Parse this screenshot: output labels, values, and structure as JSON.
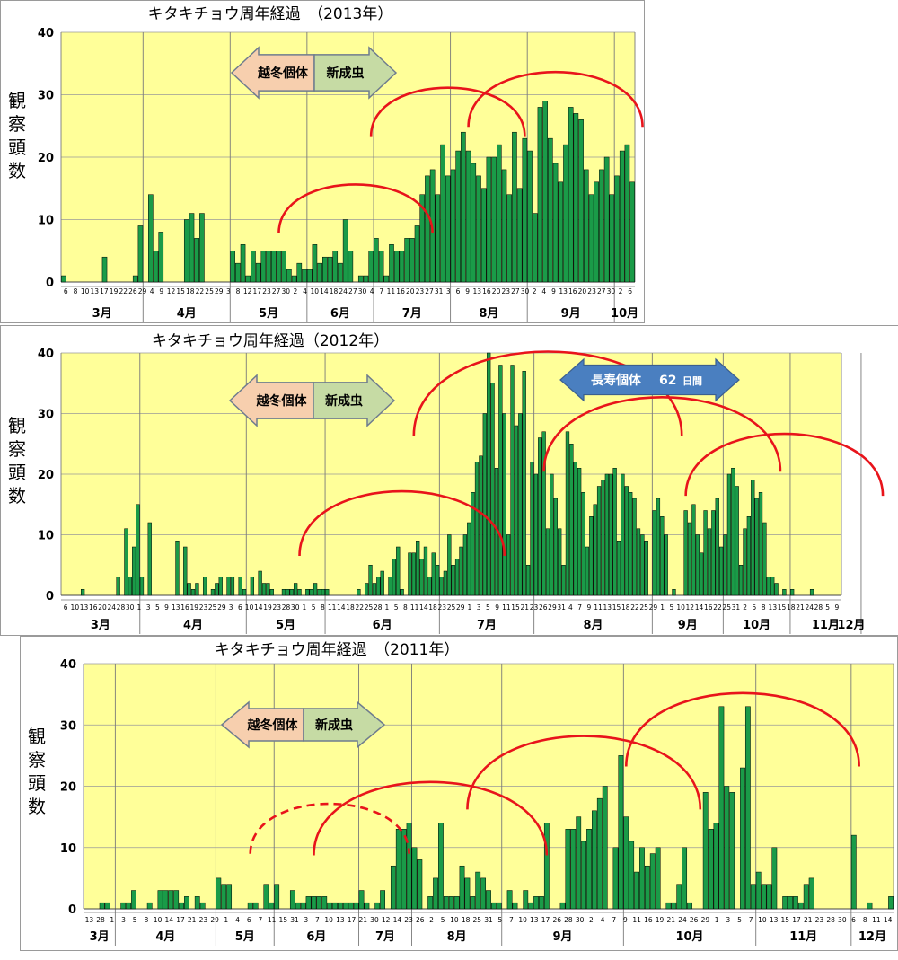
{
  "chart_data": [
    {
      "type": "bar",
      "title": "キタキチョウ周年経過　（2013年）",
      "ylabel": "観察頭数",
      "ylim": [
        0,
        40
      ],
      "yticks": [
        0,
        10,
        20,
        30,
        40
      ],
      "grid": "vertical month lines",
      "colors": {
        "plot_bg": "#ffff99",
        "bar": "#1a9b48",
        "bar_edge": "#000000",
        "arc": "#e8141b"
      },
      "x_tick_labels": [
        "6",
        "8",
        "10",
        "13",
        "17",
        "19",
        "22",
        "26",
        "29",
        "4",
        "9",
        "12",
        "15",
        "18",
        "22",
        "25",
        "29",
        "3",
        "8",
        "12",
        "17",
        "23",
        "27",
        "30",
        "2",
        "4",
        "10",
        "14",
        "18",
        "24",
        "27",
        "30",
        "4",
        "7",
        "11",
        "16",
        "20",
        "23",
        "27",
        "31",
        "3",
        "6",
        "9",
        "13",
        "16",
        "20",
        "23",
        "27",
        "30",
        "2",
        "4",
        "9",
        "13",
        "16",
        "20",
        "23",
        "27",
        "30",
        "2",
        "6"
      ],
      "values": [
        1,
        0,
        0,
        0,
        0,
        0,
        0,
        0,
        4,
        0,
        0,
        0,
        0,
        0,
        1,
        9,
        0,
        14,
        5,
        8,
        0,
        0,
        0,
        0,
        10,
        11,
        7,
        11,
        0,
        0,
        0,
        0,
        0,
        5,
        3,
        6,
        1,
        5,
        3,
        5,
        5,
        5,
        5,
        5,
        2,
        1,
        3,
        2,
        2,
        6,
        3,
        4,
        4,
        5,
        3,
        10,
        5,
        0,
        1,
        1,
        5,
        7,
        5,
        1,
        6,
        5,
        5,
        7,
        7,
        9,
        14,
        17,
        18,
        14,
        22,
        17,
        18,
        21,
        24,
        21,
        19,
        17,
        15,
        20,
        20,
        22,
        18,
        14,
        24,
        15,
        23,
        21,
        11,
        28,
        29,
        23,
        19,
        16,
        22,
        28,
        27,
        26,
        18,
        14,
        16,
        18,
        20,
        14,
        17,
        21,
        22,
        16
      ],
      "months": [
        {
          "label": "3月",
          "start_bar": 0
        },
        {
          "label": "4月",
          "start_bar": 16
        },
        {
          "label": "5月",
          "start_bar": 33
        },
        {
          "label": "6月",
          "start_bar": 48
        },
        {
          "label": "7月",
          "start_bar": 61
        },
        {
          "label": "8月",
          "start_bar": 76
        },
        {
          "label": "9月",
          "start_bar": 91
        },
        {
          "label": "10月",
          "start_bar": 108
        }
      ],
      "annotations": {
        "arrow_left": "越冬個体",
        "arrow_right": "新成虫",
        "arcs": [
          {
            "center_bar": 57,
            "peak": 15.5,
            "half_width_bars": 15,
            "dashed": false
          },
          {
            "center_bar": 75,
            "peak": 31,
            "half_width_bars": 15,
            "dashed": false
          },
          {
            "center_bar": 96,
            "peak": 33.5,
            "half_width_bars": 17,
            "dashed": false
          }
        ]
      }
    },
    {
      "type": "bar",
      "title": "キタキチョウ周年経過（2012年）",
      "ylabel": "観察頭数",
      "ylim": [
        0,
        40
      ],
      "yticks": [
        0,
        10,
        20,
        30,
        40
      ],
      "grid": "vertical month lines",
      "colors": {
        "plot_bg": "#ffff99",
        "bar": "#1a9b48",
        "bar_edge": "#000000",
        "arc": "#e8141b",
        "long_arrow": "#4a7fc0"
      },
      "x_tick_labels": [
        "6",
        "10",
        "13",
        "16",
        "20",
        "24",
        "28",
        "30",
        "1",
        "3",
        "5",
        "9",
        "13",
        "16",
        "19",
        "23",
        "25",
        "29",
        "3",
        "6",
        "10",
        "14",
        "19",
        "23",
        "28",
        "30",
        "1",
        "5",
        "8",
        "11",
        "14",
        "18",
        "22",
        "25",
        "28",
        "1",
        "5",
        "8",
        "11",
        "14",
        "18",
        "23",
        "25",
        "29",
        "1",
        "3",
        "5",
        "9",
        "11",
        "15",
        "21",
        "23",
        "26",
        "29",
        "31",
        "4",
        "7",
        "9",
        "11",
        "13",
        "15",
        "18",
        "22",
        "25",
        "29",
        "1",
        "5",
        "10",
        "12",
        "14",
        "16",
        "22",
        "25",
        "31",
        "2",
        "5",
        "8",
        "13",
        "15",
        "18",
        "21",
        "24",
        "28",
        "5",
        "9"
      ],
      "values": [
        0,
        0,
        0,
        0,
        0,
        1,
        0,
        0,
        0,
        0,
        0,
        0,
        0,
        0,
        3,
        0,
        11,
        3,
        8,
        15,
        3,
        0,
        12,
        0,
        0,
        0,
        0,
        0,
        0,
        9,
        0,
        8,
        2,
        1,
        2,
        0,
        3,
        0,
        1,
        2,
        3,
        0,
        3,
        3,
        0,
        3,
        1,
        0,
        3,
        0,
        4,
        2,
        2,
        1,
        0,
        0,
        1,
        1,
        1,
        2,
        1,
        0,
        1,
        1,
        2,
        1,
        1,
        1,
        0,
        0,
        0,
        0,
        0,
        0,
        0,
        1,
        0,
        2,
        5,
        2,
        3,
        4,
        0,
        3,
        6,
        8,
        1,
        0,
        7,
        7,
        9,
        6,
        8,
        3,
        7,
        5,
        3,
        4,
        10,
        5,
        6,
        8,
        10,
        12,
        17,
        22,
        23,
        30,
        40,
        35,
        21,
        38,
        30,
        10,
        38,
        28,
        30,
        37,
        5,
        22,
        20,
        26,
        27,
        11,
        20,
        16,
        11,
        5,
        27,
        25,
        22,
        21,
        17,
        8,
        13,
        15,
        18,
        19,
        20,
        20,
        21,
        9,
        20,
        18,
        17,
        16,
        11,
        10,
        9,
        0,
        14,
        16,
        13,
        10,
        0,
        1,
        0,
        0,
        14,
        12,
        15,
        10,
        7,
        14,
        11,
        14,
        16,
        8,
        10,
        20,
        21,
        18,
        5,
        11,
        13,
        19,
        16,
        17,
        12,
        3,
        3,
        2,
        0,
        1,
        0,
        1,
        0,
        0,
        0,
        0,
        1,
        0,
        0,
        0,
        0,
        0,
        0,
        0
      ],
      "months": [
        {
          "label": "3月",
          "start_bar": 0
        },
        {
          "label": "4月",
          "start_bar": 20
        },
        {
          "label": "5月",
          "start_bar": 47
        },
        {
          "label": "6月",
          "start_bar": 67
        },
        {
          "label": "7月",
          "start_bar": 96
        },
        {
          "label": "8月",
          "start_bar": 120
        },
        {
          "label": "9月",
          "start_bar": 150
        },
        {
          "label": "10月",
          "start_bar": 168
        },
        {
          "label": "11月",
          "start_bar": 185
        },
        {
          "label": "12月",
          "start_bar": 203
        }
      ],
      "annotations": {
        "arrow_left": "越冬個体",
        "arrow_right": "新成虫",
        "long_arrow": {
          "label": "長寿個体",
          "number": "62",
          "unit": "日間"
        },
        "arcs": [
          {
            "center_bar": 86,
            "peak": 17,
            "half_width_bars": 26,
            "dashed": false
          },
          {
            "center_bar": 123,
            "peak": 40,
            "half_width_bars": 34,
            "dashed": false
          },
          {
            "center_bar": 152,
            "peak": 32.5,
            "half_width_bars": 30,
            "dashed": false
          },
          {
            "center_bar": 183,
            "peak": 26.5,
            "half_width_bars": 25,
            "dashed": false
          }
        ]
      }
    },
    {
      "type": "bar",
      "title": "キタキチョウ周年経過　（2011年）",
      "ylabel": "観察頭数",
      "ylim": [
        0,
        40
      ],
      "yticks": [
        0,
        10,
        20,
        30,
        40
      ],
      "grid": "vertical month lines",
      "colors": {
        "plot_bg": "#ffff99",
        "bar": "#1a9b48",
        "bar_edge": "#000000",
        "arc": "#e8141b"
      },
      "x_tick_labels": [
        "13",
        "28",
        "1",
        "3",
        "5",
        "8",
        "10",
        "14",
        "17",
        "21",
        "23",
        "29",
        "1",
        "4",
        "6",
        "7",
        "11",
        "15",
        "31",
        "3",
        "7",
        "10",
        "13",
        "17",
        "21",
        "30",
        "12",
        "14",
        "23",
        "26",
        "2",
        "5",
        "10",
        "18",
        "25",
        "31",
        "5",
        "7",
        "10",
        "13",
        "17",
        "26",
        "28",
        "30",
        "2",
        "4",
        "7",
        "9",
        "11",
        "16",
        "19",
        "21",
        "24",
        "26",
        "29",
        "1",
        "3",
        "5",
        "7",
        "10",
        "13",
        "15",
        "17",
        "21",
        "23",
        "28",
        "30",
        "6",
        "8",
        "11",
        "14"
      ],
      "values": [
        0,
        0,
        0,
        1,
        1,
        0,
        0,
        1,
        1,
        3,
        0,
        0,
        1,
        0,
        3,
        3,
        3,
        3,
        1,
        2,
        0,
        2,
        1,
        0,
        0,
        5,
        4,
        4,
        0,
        0,
        0,
        1,
        1,
        0,
        4,
        1,
        4,
        0,
        0,
        3,
        1,
        1,
        2,
        2,
        2,
        2,
        1,
        1,
        1,
        1,
        1,
        1,
        3,
        1,
        0,
        1,
        3,
        0,
        7,
        13,
        13,
        14,
        10,
        8,
        0,
        2,
        5,
        14,
        2,
        2,
        2,
        7,
        5,
        2,
        6,
        5,
        3,
        1,
        1,
        0,
        3,
        1,
        0,
        3,
        1,
        2,
        2,
        14,
        0,
        0,
        1,
        13,
        13,
        15,
        11,
        13,
        16,
        18,
        20,
        0,
        10,
        25,
        15,
        11,
        6,
        10,
        7,
        9,
        10,
        0,
        1,
        1,
        4,
        10,
        1,
        0,
        0,
        19,
        13,
        14,
        33,
        20,
        19,
        0,
        23,
        33,
        4,
        6,
        4,
        4,
        10,
        0,
        2,
        2,
        2,
        1,
        4,
        5,
        0,
        0,
        0,
        0,
        0,
        0,
        0,
        12,
        0,
        0,
        1,
        0,
        0,
        0,
        2
      ],
      "months": [
        {
          "label": "3月",
          "start_bar": 0
        },
        {
          "label": "4月",
          "start_bar": 6
        },
        {
          "label": "5月",
          "start_bar": 25
        },
        {
          "label": "6月",
          "start_bar": 36
        },
        {
          "label": "7月",
          "start_bar": 52
        },
        {
          "label": "8月",
          "start_bar": 62
        },
        {
          "label": "9月",
          "start_bar": 79
        },
        {
          "label": "10月",
          "start_bar": 102
        },
        {
          "label": "11月",
          "start_bar": 127
        },
        {
          "label": "12月",
          "start_bar": 145
        }
      ],
      "annotations": {
        "arrow_left": "越冬個体",
        "arrow_right": "新成虫",
        "arcs": [
          {
            "center_bar": 46,
            "peak": 17,
            "half_width_bars": 15,
            "dashed": true
          },
          {
            "center_bar": 65,
            "peak": 20.5,
            "half_width_bars": 22,
            "dashed": false
          },
          {
            "center_bar": 94,
            "peak": 28,
            "half_width_bars": 22,
            "dashed": false
          },
          {
            "center_bar": 124,
            "peak": 35,
            "half_width_bars": 22,
            "dashed": false
          }
        ]
      }
    }
  ]
}
